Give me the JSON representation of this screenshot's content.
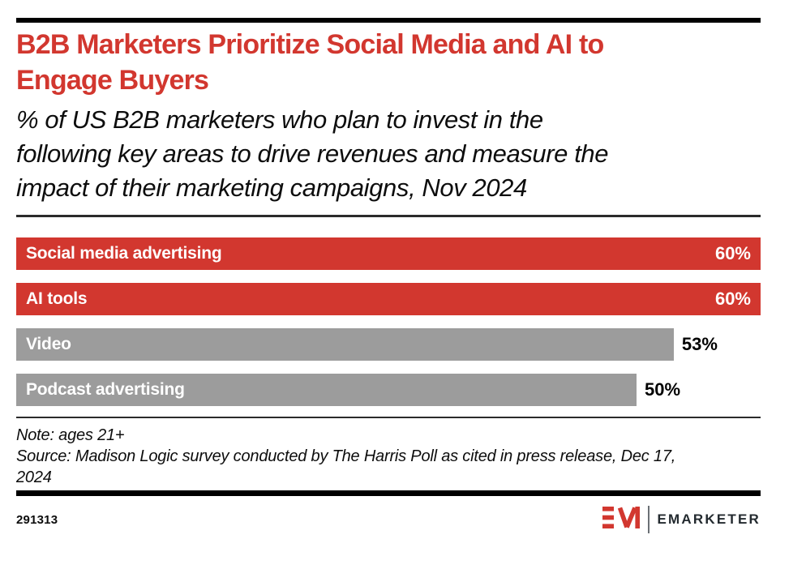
{
  "page": {
    "background": "#ffffff",
    "accent_red": "#d2372f",
    "bar_gray": "#9c9c9c"
  },
  "header": {
    "title": "B2B Marketers Prioritize Social Media and AI to\nEngage Buyers",
    "subtitle": "% of US B2B marketers who plan to invest in the\nfollowing key areas to drive revenues and measure the\nimpact of their marketing campaigns, Nov 2024"
  },
  "chart_data": {
    "type": "bar",
    "orientation": "horizontal",
    "title": "B2B Marketers Prioritize Social Media and AI to Engage Buyers",
    "subtitle": "% of US B2B marketers who plan to invest in the following key areas to drive revenues and measure the impact of their marketing campaigns, Nov 2024",
    "categories": [
      "Social media advertising",
      "AI tools",
      "Video",
      "Podcast advertising"
    ],
    "values": [
      60,
      60,
      53,
      50
    ],
    "unit": "%",
    "value_labels": [
      "60%",
      "60%",
      "53%",
      "50%"
    ],
    "bar_colors": [
      "#d2372f",
      "#d2372f",
      "#9c9c9c",
      "#9c9c9c"
    ],
    "value_positions": [
      "inside",
      "inside",
      "outside",
      "outside"
    ],
    "xlim": [
      0,
      60
    ],
    "grid": false,
    "legend": false
  },
  "footnote": {
    "note": "Note: ages 21+",
    "source": "Source: Madison Logic survey conducted by The Harris Poll as cited in press release, Dec 17,\n2024"
  },
  "footer": {
    "chart_id": "291313",
    "brand_name": "EMARKETER"
  }
}
